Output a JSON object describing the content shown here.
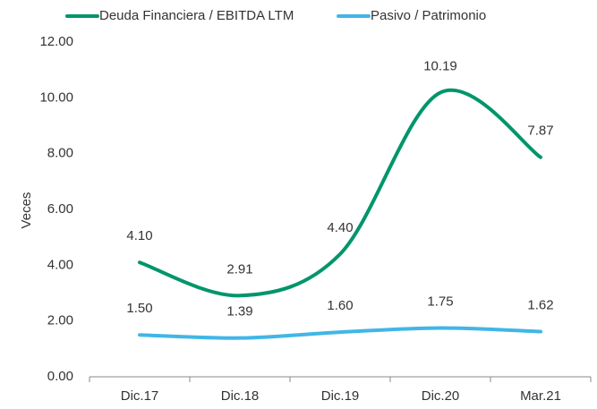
{
  "chart_data": {
    "type": "line",
    "y_label": "Veces",
    "categories": [
      "Dic.17",
      "Dic.18",
      "Dic.19",
      "Dic.20",
      "Mar.21"
    ],
    "series": [
      {
        "name": "Deuda Financiera / EBITDA LTM",
        "color": "#00956b",
        "values": [
          4.1,
          2.91,
          4.4,
          10.19,
          7.87
        ],
        "value_labels": [
          "4.10",
          "2.91",
          "4.40",
          "10.19",
          "7.87"
        ]
      },
      {
        "name": "Pasivo / Patrimonio",
        "color": "#41b6e6",
        "values": [
          1.5,
          1.39,
          1.6,
          1.75,
          1.62
        ],
        "value_labels": [
          "1.50",
          "1.39",
          "1.60",
          "1.75",
          "1.62"
        ]
      }
    ],
    "ylim": [
      0,
      12
    ],
    "yticks": [
      {
        "value": 0,
        "label": "0.00"
      },
      {
        "value": 2,
        "label": "2.00"
      },
      {
        "value": 4,
        "label": "4.00"
      },
      {
        "value": 6,
        "label": "6.00"
      },
      {
        "value": 8,
        "label": "8.00"
      },
      {
        "value": 10,
        "label": "10.00"
      },
      {
        "value": 12,
        "label": "12.00"
      }
    ],
    "smooth": true,
    "grid": false,
    "legend": "top"
  }
}
